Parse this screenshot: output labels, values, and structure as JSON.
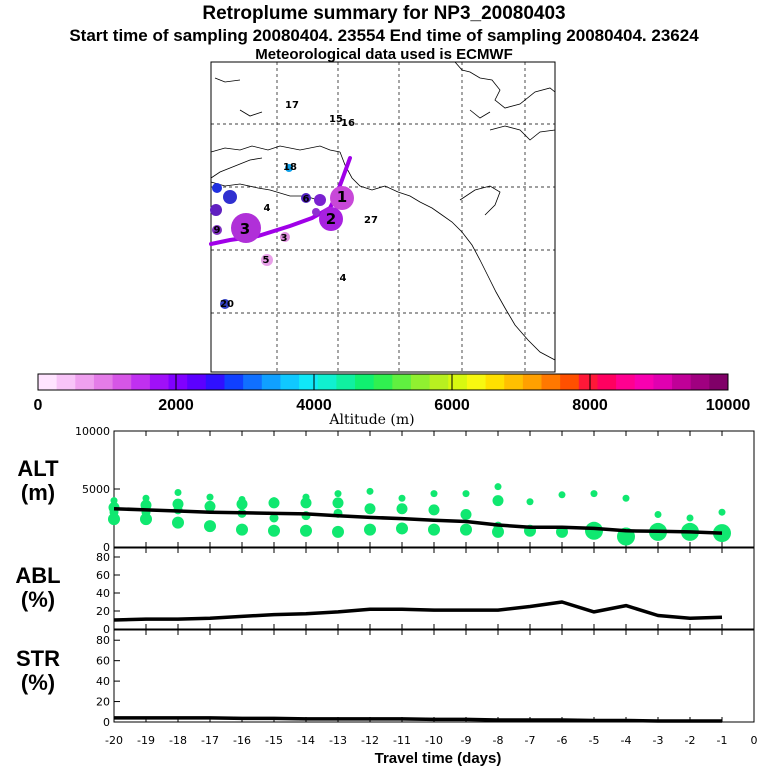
{
  "header": {
    "title": "Retroplume summary for NP3_20080403",
    "subtitle_line1": "Start time of sampling 20080404. 23554     End time of sampling 20080404. 23624",
    "subtitle_line2": "Meteorological data used is ECMWF"
  },
  "colorbar": {
    "title": "Altitude (m)",
    "tick_labels": [
      "0",
      "2000",
      "4000",
      "6000",
      "8000",
      "10000"
    ],
    "colors": [
      "#ffe4ff",
      "#f8c4f8",
      "#efa0ef",
      "#e47ce8",
      "#d656e6",
      "#c030f0",
      "#a010f8",
      "#8000ff",
      "#5c00ff",
      "#3010ff",
      "#1040ff",
      "#1070ff",
      "#10a0ff",
      "#10c8ff",
      "#10e8f8",
      "#10f0d0",
      "#10f0a0",
      "#10f070",
      "#30f050",
      "#60f040",
      "#90f030",
      "#b8f020",
      "#d8f810",
      "#f8f810",
      "#ffe000",
      "#ffc000",
      "#ffa000",
      "#ff7800",
      "#ff5000",
      "#ff1838",
      "#ff0060",
      "#ff0090",
      "#f800b0",
      "#e000b0",
      "#c00098",
      "#a00080",
      "#800068"
    ]
  },
  "map": {
    "labels": [
      {
        "text": "17",
        "color": "#10a8e8"
      },
      {
        "text": "15",
        "color": "#1080e0"
      },
      {
        "text": "16",
        "color": "#10a0e8"
      },
      {
        "text": "18",
        "color": "#1090e0"
      },
      {
        "text": "1",
        "color": "#c848d8"
      },
      {
        "text": "2",
        "color": "#a820e0"
      },
      {
        "text": "3",
        "color": "#b030d8"
      },
      {
        "text": "3",
        "color": "#e090e0"
      },
      {
        "text": "4",
        "color": "#f0b0f0"
      },
      {
        "text": "5",
        "color": "#e8a0e8"
      },
      {
        "text": "6",
        "color": "#5020c0"
      },
      {
        "text": "27",
        "color": "#c060d0"
      },
      {
        "text": "20",
        "color": "#3040c0"
      },
      {
        "text": "4",
        "color": "#6020c0"
      },
      {
        "text": "9",
        "color": "#8030c0"
      }
    ]
  },
  "chart_data": [
    {
      "type": "scatter+line",
      "panel": "ALT",
      "ylabel": "ALT\n(m)",
      "ylim": [
        0,
        10000
      ],
      "yticks": [
        "10000",
        "5000",
        "0"
      ],
      "x": [
        -20,
        -19,
        -18,
        -17,
        -16,
        -15,
        -14,
        -13,
        -12,
        -11,
        -10,
        -9,
        -8,
        -7,
        -6,
        -5,
        -4,
        -3,
        -2,
        -1
      ],
      "line_values": [
        3300,
        3200,
        3100,
        3000,
        2950,
        2900,
        2850,
        2700,
        2550,
        2450,
        2300,
        2200,
        1900,
        1700,
        1700,
        1600,
        1400,
        1350,
        1300,
        1200
      ],
      "cluster_altitudes": [
        [
          4000,
          3400,
          3000,
          2400
        ],
        [
          4200,
          3600,
          3000,
          2400
        ],
        [
          4700,
          3700,
          3200,
          2100
        ],
        [
          4300,
          3500,
          1800
        ],
        [
          4100,
          3700,
          2900,
          1500
        ],
        [
          4000,
          3800,
          2500,
          1400
        ],
        [
          4300,
          3800,
          2700,
          1400
        ],
        [
          4600,
          3800,
          2900,
          1300
        ],
        [
          4800,
          3300,
          1500
        ],
        [
          4200,
          3300,
          1600
        ],
        [
          4600,
          3200,
          1500
        ],
        [
          4600,
          2800,
          1500
        ],
        [
          5200,
          4000,
          1800,
          1300
        ],
        [
          3900,
          1400
        ],
        [
          4500,
          1300
        ],
        [
          4600,
          1400
        ],
        [
          4200,
          900
        ],
        [
          2800,
          1300
        ],
        [
          2500,
          1300
        ],
        [
          3000,
          1200
        ]
      ]
    },
    {
      "type": "line",
      "panel": "ABL",
      "ylabel": "ABL\n(%)",
      "ylim": [
        0,
        90
      ],
      "yticks": [
        "80",
        "60",
        "40",
        "20",
        "0"
      ],
      "x": [
        -20,
        -19,
        -18,
        -17,
        -16,
        -15,
        -14,
        -13,
        -12,
        -11,
        -10,
        -9,
        -8,
        -7,
        -6,
        -5,
        -4,
        -3,
        -2,
        -1
      ],
      "values": [
        10,
        11,
        11,
        12,
        14,
        16,
        17,
        19,
        22,
        22,
        21,
        21,
        21,
        25,
        30,
        19,
        26,
        15,
        12,
        13
      ]
    },
    {
      "type": "line",
      "panel": "STR",
      "ylabel": "STR\n(%)",
      "ylim": [
        0,
        90
      ],
      "yticks": [
        "80",
        "60",
        "40",
        "20",
        "0"
      ],
      "x": [
        -20,
        -19,
        -18,
        -17,
        -16,
        -15,
        -14,
        -13,
        -12,
        -11,
        -10,
        -9,
        -8,
        -7,
        -6,
        -5,
        -4,
        -3,
        -2,
        -1
      ],
      "values": [
        4,
        4,
        4,
        4,
        3.5,
        3.5,
        3,
        3,
        3,
        3,
        2.5,
        2.5,
        2,
        2,
        2,
        1.5,
        1.5,
        1,
        1,
        1
      ]
    }
  ],
  "xaxis": {
    "title": "Travel time (days)",
    "tick_labels": [
      "-20",
      "-19",
      "-18",
      "-17",
      "-16",
      "-15",
      "-14",
      "-13",
      "-12",
      "-11",
      "-10",
      "-9",
      "-8",
      "-7",
      "-6",
      "-5",
      "-4",
      "-3",
      "-2",
      "-1",
      "0"
    ]
  }
}
